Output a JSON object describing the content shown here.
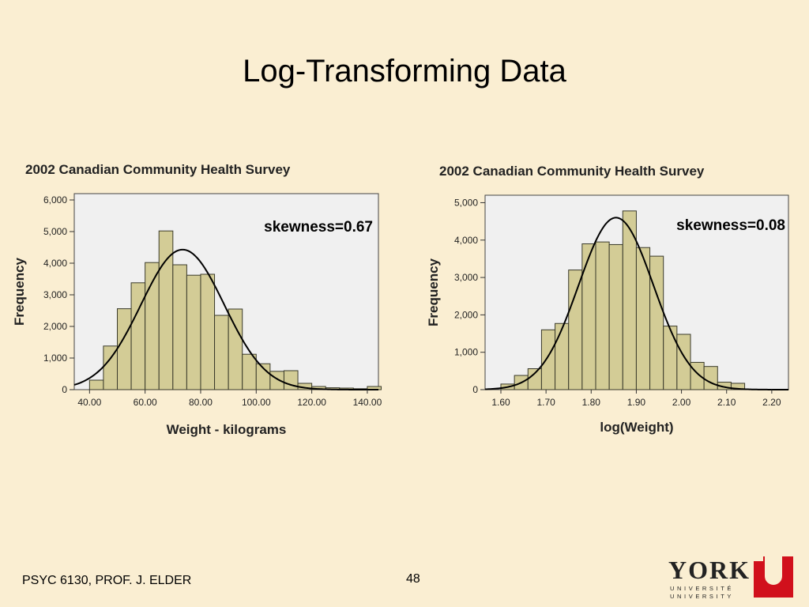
{
  "slide": {
    "title": "Log-Transforming Data",
    "footer": "PSYC 6130, PROF. J. ELDER",
    "page_number": "48",
    "logo": {
      "word": "YORK",
      "line1": "UNIVERSITÉ",
      "line2": "UNIVERSITY"
    }
  },
  "colors": {
    "background": "#faeed2",
    "plot_background": "#f0f0f0",
    "bar_fill": "#d3cc96",
    "bar_stroke": "#3a3a2a",
    "curve": "#000000",
    "logo_red": "#d1101c"
  },
  "chart_data": [
    {
      "type": "bar",
      "subtype": "histogram",
      "title": "2002 Canadian Community Health Survey",
      "xlabel": "Weight - kilograms",
      "ylabel": "Frequency",
      "annotation": "skewness=0.67",
      "bin_width": 5,
      "bin_starts": [
        40,
        45,
        50,
        55,
        60,
        65,
        70,
        75,
        80,
        85,
        90,
        95,
        100,
        105,
        110,
        115,
        120,
        125,
        130,
        135,
        140
      ],
      "values": [
        300,
        1380,
        2560,
        3380,
        4020,
        5020,
        3950,
        3620,
        3650,
        2350,
        2550,
        1120,
        820,
        580,
        600,
        200,
        100,
        60,
        50,
        30,
        100
      ],
      "xlim": [
        34.5,
        144
      ],
      "ylim": [
        0,
        6200
      ],
      "xticks": [
        40,
        60,
        80,
        100,
        120,
        140
      ],
      "xtick_labels": [
        "40.00",
        "60.00",
        "80.00",
        "100.00",
        "120.00",
        "140.00"
      ],
      "yticks": [
        0,
        1000,
        2000,
        3000,
        4000,
        5000,
        6000
      ],
      "ytick_labels": [
        "0",
        "1,000",
        "2,000",
        "3,000",
        "4,000",
        "5,000",
        "6,000"
      ],
      "normal_curve": {
        "mean": 73.5,
        "sd": 15,
        "peak": 4430
      }
    },
    {
      "type": "bar",
      "subtype": "histogram",
      "title": "2002 Canadian Community Health Survey",
      "xlabel": "log(Weight)",
      "ylabel": "Frequency",
      "annotation": "skewness=0.08",
      "bin_width": 0.03,
      "bin_starts": [
        1.6,
        1.63,
        1.66,
        1.69,
        1.72,
        1.75,
        1.78,
        1.81,
        1.84,
        1.87,
        1.9,
        1.93,
        1.96,
        1.99,
        2.02,
        2.05,
        2.08,
        2.11,
        2.14
      ],
      "values": [
        150,
        380,
        560,
        1600,
        1770,
        3200,
        3900,
        3950,
        3880,
        4780,
        3800,
        3570,
        1700,
        1480,
        730,
        620,
        200,
        170,
        10
      ],
      "xlim": [
        1.565,
        2.237
      ],
      "ylim": [
        0,
        5200
      ],
      "xticks": [
        1.6,
        1.7,
        1.8,
        1.9,
        2.0,
        2.1,
        2.2
      ],
      "xtick_labels": [
        "1.60",
        "1.70",
        "1.80",
        "1.90",
        "2.00",
        "2.10",
        "2.20"
      ],
      "yticks": [
        0,
        1000,
        2000,
        3000,
        4000,
        5000
      ],
      "ytick_labels": [
        "0",
        "1,000",
        "2,000",
        "3,000",
        "4,000",
        "5,000"
      ],
      "normal_curve": {
        "mean": 1.855,
        "sd": 0.083,
        "peak": 4600
      }
    }
  ]
}
